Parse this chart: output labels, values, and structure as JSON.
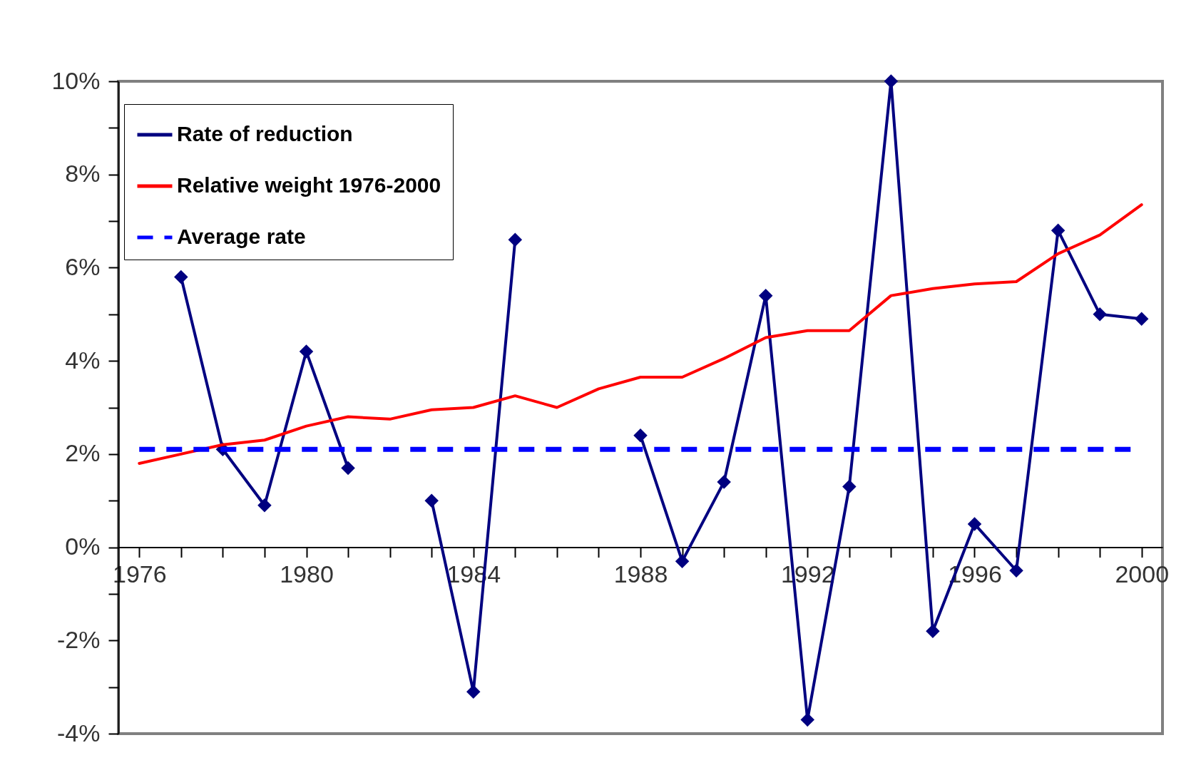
{
  "chart_data": {
    "type": "line",
    "x": [
      1976,
      1977,
      1978,
      1979,
      1980,
      1981,
      1982,
      1983,
      1984,
      1985,
      1986,
      1987,
      1988,
      1989,
      1990,
      1991,
      1992,
      1993,
      1994,
      1995,
      1996,
      1997,
      1998,
      1999,
      2000
    ],
    "series": [
      {
        "name": "Rate of reduction",
        "color": "#000080",
        "marker": "diamond",
        "line_style": "solid",
        "values": [
          null,
          5.8,
          2.1,
          0.9,
          4.2,
          1.7,
          null,
          1.0,
          -3.1,
          6.6,
          null,
          null,
          2.4,
          -0.3,
          1.4,
          5.4,
          -3.7,
          1.3,
          10.0,
          -1.8,
          0.5,
          -0.5,
          6.8,
          5.0,
          4.9
        ]
      },
      {
        "name": "Relative weight 1976-2000",
        "color": "#ff0000",
        "marker": "none",
        "line_style": "solid",
        "values": [
          1.8,
          2.0,
          2.2,
          2.3,
          2.6,
          2.8,
          2.75,
          2.95,
          3.0,
          3.25,
          3.0,
          3.4,
          3.65,
          3.65,
          4.05,
          4.5,
          4.65,
          4.65,
          5.4,
          5.55,
          5.65,
          5.7,
          6.3,
          6.7,
          7.35
        ]
      }
    ],
    "ref_lines": [
      {
        "axis": "y",
        "value": 2.1,
        "label": "Average rate",
        "color": "#0000ff",
        "line_style": "dashed"
      }
    ],
    "xlim": [
      1975.5,
      2000.5
    ],
    "ylim": [
      -4,
      10
    ],
    "xticks": [
      1976,
      {
        "value": 1977,
        "label": null
      },
      {
        "value": 1978,
        "label": null
      },
      {
        "value": 1979,
        "label": null
      },
      1980,
      {
        "value": 1981,
        "label": null
      },
      {
        "value": 1982,
        "label": null
      },
      {
        "value": 1983,
        "label": null
      },
      1984,
      {
        "value": 1985,
        "label": null
      },
      {
        "value": 1986,
        "label": null
      },
      {
        "value": 1987,
        "label": null
      },
      1988,
      {
        "value": 1989,
        "label": null
      },
      {
        "value": 1990,
        "label": null
      },
      {
        "value": 1991,
        "label": null
      },
      1992,
      {
        "value": 1993,
        "label": null
      },
      {
        "value": 1994,
        "label": null
      },
      {
        "value": 1995,
        "label": null
      },
      1996,
      {
        "value": 1997,
        "label": null
      },
      {
        "value": 1998,
        "label": null
      },
      {
        "value": 1999,
        "label": null
      },
      2000
    ],
    "yticks": [
      {
        "value": -4,
        "label": "-4%"
      },
      {
        "value": -3,
        "label": null
      },
      {
        "value": -2,
        "label": "-2%"
      },
      {
        "value": -1,
        "label": null
      },
      {
        "value": 0,
        "label": "0%"
      },
      {
        "value": 1,
        "label": null
      },
      {
        "value": 2,
        "label": "2%"
      },
      {
        "value": 3,
        "label": null
      },
      {
        "value": 4,
        "label": "4%"
      },
      {
        "value": 5,
        "label": null
      },
      {
        "value": 6,
        "label": "6%"
      },
      {
        "value": 7,
        "label": null
      },
      {
        "value": 8,
        "label": "8%"
      },
      {
        "value": 9,
        "label": null
      },
      {
        "value": 10,
        "label": "10%"
      }
    ],
    "grid": false,
    "legend": "top left"
  }
}
